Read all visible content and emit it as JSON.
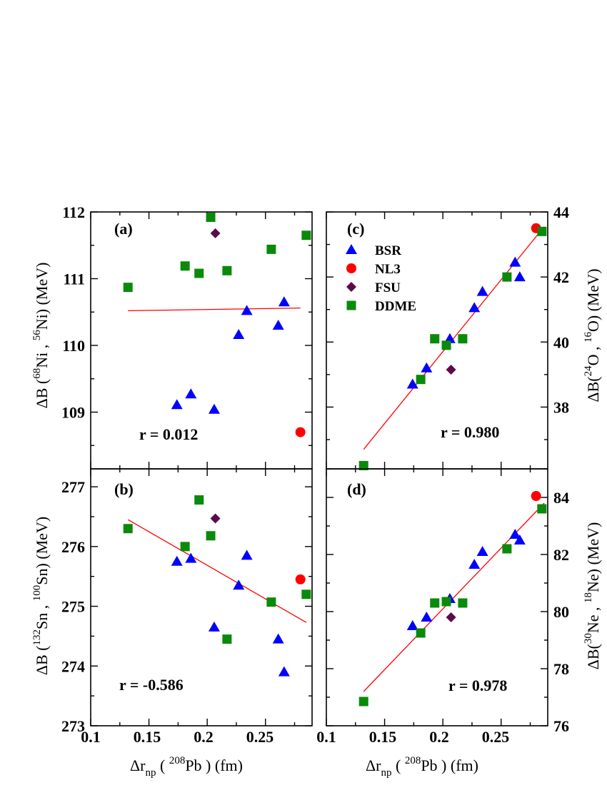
{
  "figure": {
    "xlabel": {
      "prefix": "Δr",
      "sub": "np",
      "mid": " ( ",
      "sup": "208",
      "after": "Pb ) (fm)"
    },
    "x_ticks": [
      "0.1",
      "0.15",
      "0.2",
      "0.25"
    ],
    "colors": {
      "BSR": "#0000ff",
      "NL3": "#ff0000",
      "FSU": "#5c0a4a",
      "DDME": "#0a8a0a",
      "fit": "#ff0000"
    }
  },
  "legend": [
    {
      "name": "BSR",
      "marker": "triangle"
    },
    {
      "name": "NL3",
      "marker": "circle"
    },
    {
      "name": "FSU",
      "marker": "diamond"
    },
    {
      "name": "DDME",
      "marker": "square"
    }
  ],
  "chart_data": [
    {
      "id": "a",
      "type": "scatter",
      "tag": "(a)",
      "corr": "r = 0.012",
      "xlim": [
        0.1,
        0.29
      ],
      "ylim": [
        108.15,
        112.0
      ],
      "y_ticks": [
        "109",
        "110",
        "111",
        "112"
      ],
      "y_tick_values": [
        109,
        110,
        111,
        112
      ],
      "ylabel": [
        "ΔB (",
        "68",
        "Ni , ",
        "56",
        "Ni) (MeV)"
      ],
      "fit": {
        "x": [
          0.132,
          0.28
        ],
        "y": [
          110.52,
          110.56
        ]
      },
      "series": [
        {
          "name": "BSR",
          "x": [
            0.174,
            0.186,
            0.206,
            0.227,
            0.234,
            0.261,
            0.266
          ],
          "y": [
            109.11,
            109.27,
            109.04,
            110.16,
            110.52,
            110.3,
            110.65
          ]
        },
        {
          "name": "NL3",
          "x": [
            0.28
          ],
          "y": [
            108.7
          ]
        },
        {
          "name": "FSU",
          "x": [
            0.207
          ],
          "y": [
            111.68
          ]
        },
        {
          "name": "DDME",
          "x": [
            0.132,
            0.181,
            0.193,
            0.203,
            0.217,
            0.255,
            0.285
          ],
          "y": [
            110.87,
            111.19,
            111.08,
            111.92,
            111.12,
            111.44,
            111.65
          ]
        }
      ]
    },
    {
      "id": "c",
      "type": "scatter",
      "tag": "(c)",
      "corr": "r = 0.980",
      "xlim": [
        0.1,
        0.29
      ],
      "ylim": [
        36.1,
        44.0
      ],
      "y_ticks": [
        "38",
        "40",
        "42",
        "44"
      ],
      "y_tick_values": [
        38,
        40,
        42,
        44
      ],
      "ylabel": [
        "ΔB(",
        "24",
        "O , ",
        "16",
        "O) (MeV)"
      ],
      "fit": {
        "x": [
          0.132,
          0.287
        ],
        "y": [
          36.7,
          43.55
        ]
      },
      "series": [
        {
          "name": "BSR",
          "x": [
            0.174,
            0.186,
            0.206,
            0.227,
            0.234,
            0.262,
            0.266
          ],
          "y": [
            38.7,
            39.2,
            40.1,
            41.05,
            41.55,
            42.45,
            42.0
          ]
        },
        {
          "name": "NL3",
          "x": [
            0.28
          ],
          "y": [
            43.5
          ]
        },
        {
          "name": "FSU",
          "x": [
            0.207
          ],
          "y": [
            39.15
          ]
        },
        {
          "name": "DDME",
          "x": [
            0.132,
            0.181,
            0.193,
            0.203,
            0.217,
            0.255,
            0.285
          ],
          "y": [
            36.2,
            38.85,
            40.1,
            39.9,
            40.1,
            42.0,
            43.4
          ]
        }
      ]
    },
    {
      "id": "b",
      "type": "scatter",
      "tag": "(b)",
      "corr": "r = -0.586",
      "xlim": [
        0.1,
        0.29
      ],
      "ylim": [
        273.0,
        277.3
      ],
      "y_ticks": [
        "273",
        "274",
        "275",
        "276",
        "277"
      ],
      "y_tick_values": [
        273,
        274,
        275,
        276,
        277
      ],
      "ylabel": [
        "ΔB (",
        "132",
        "Sn , ",
        "100",
        "Sn) (MeV)"
      ],
      "fit": {
        "x": [
          0.132,
          0.285
        ],
        "y": [
          276.45,
          274.73
        ]
      },
      "series": [
        {
          "name": "BSR",
          "x": [
            0.174,
            0.186,
            0.206,
            0.227,
            0.234,
            0.261,
            0.266
          ],
          "y": [
            275.75,
            275.8,
            274.65,
            275.35,
            275.85,
            274.45,
            273.9
          ]
        },
        {
          "name": "NL3",
          "x": [
            0.28
          ],
          "y": [
            275.45
          ]
        },
        {
          "name": "FSU",
          "x": [
            0.207
          ],
          "y": [
            276.47
          ]
        },
        {
          "name": "DDME",
          "x": [
            0.132,
            0.181,
            0.193,
            0.203,
            0.217,
            0.255,
            0.285
          ],
          "y": [
            276.3,
            276.0,
            276.78,
            276.18,
            274.45,
            275.07,
            275.2
          ]
        }
      ]
    },
    {
      "id": "d",
      "type": "scatter",
      "tag": "(d)",
      "corr": "r = 0.978",
      "xlim": [
        0.1,
        0.29
      ],
      "ylim": [
        76.0,
        85.0
      ],
      "y_ticks": [
        "76",
        "78",
        "80",
        "82",
        "84"
      ],
      "y_tick_values": [
        76,
        78,
        80,
        82,
        84
      ],
      "ylabel": [
        "ΔB(",
        "30",
        "Ne , ",
        "18",
        "Ne) (MeV)"
      ],
      "fit": {
        "x": [
          0.132,
          0.287
        ],
        "y": [
          77.2,
          83.8
        ]
      },
      "series": [
        {
          "name": "BSR",
          "x": [
            0.174,
            0.186,
            0.206,
            0.227,
            0.234,
            0.262,
            0.266
          ],
          "y": [
            79.5,
            79.8,
            80.45,
            81.65,
            82.1,
            82.7,
            82.5
          ]
        },
        {
          "name": "NL3",
          "x": [
            0.28
          ],
          "y": [
            84.05
          ]
        },
        {
          "name": "FSU",
          "x": [
            0.207
          ],
          "y": [
            79.8
          ]
        },
        {
          "name": "DDME",
          "x": [
            0.132,
            0.181,
            0.193,
            0.203,
            0.217,
            0.255,
            0.285
          ],
          "y": [
            76.85,
            79.25,
            80.3,
            80.35,
            80.3,
            82.2,
            83.6
          ]
        }
      ]
    }
  ]
}
